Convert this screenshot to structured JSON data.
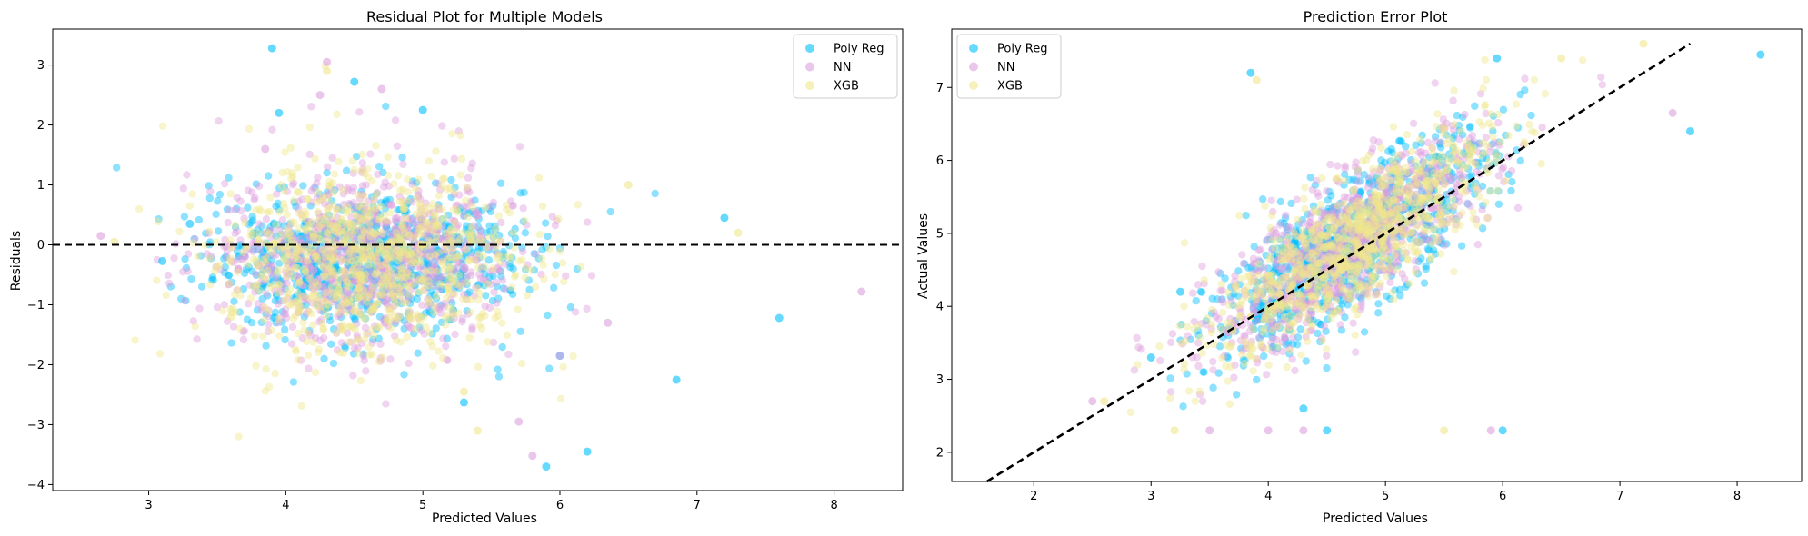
{
  "chart_data": [
    {
      "type": "scatter",
      "title": "Residual Plot for Multiple Models",
      "xlabel": "Predicted Values",
      "ylabel": "Residuals",
      "xlim": [
        2.3,
        8.5
      ],
      "ylim": [
        -4.1,
        3.6
      ],
      "xticks": [
        3,
        4,
        5,
        6,
        7,
        8
      ],
      "yticks": [
        -4,
        -3,
        -2,
        -1,
        0,
        1,
        2,
        3
      ],
      "grid": false,
      "legend_position": "top-right",
      "reference_line": {
        "type": "horizontal",
        "y": 0,
        "style": "dashed",
        "color": "#000000"
      },
      "series": [
        {
          "name": "Poly Reg",
          "color": "#00bfff",
          "alpha": 0.5,
          "points_description": "dense cloud x 3.2-7.6, residuals mostly -1.5 to 2",
          "x": [
            3.9,
            4.5,
            5.3,
            5.9,
            6.0,
            6.2,
            3.1,
            3.3,
            7.2,
            7.6,
            6.85,
            3.95,
            5.0
          ],
          "y": [
            3.28,
            2.72,
            -2.63,
            -3.7,
            -1.85,
            -3.45,
            -0.27,
            0.35,
            0.45,
            -1.22,
            -2.25,
            2.2,
            2.25
          ]
        },
        {
          "name": "NN",
          "color": "#dda0dd",
          "alpha": 0.5,
          "points_description": "dense cloud x 2.6-8.2, residuals mostly -1.5 to 2",
          "x": [
            2.65,
            4.3,
            4.25,
            5.8,
            5.7,
            8.2,
            4.7,
            3.85,
            6.35,
            6.0
          ],
          "y": [
            0.15,
            3.05,
            2.5,
            -3.52,
            -2.95,
            -0.78,
            2.6,
            1.6,
            -1.3,
            -1.85
          ]
        },
        {
          "name": "XGB",
          "color": "#f0e68c",
          "alpha": 0.5,
          "points_description": "dense cloud x 2.7-7.5, residuals mostly -1.2 to 1.5",
          "x": [
            2.75,
            4.3,
            5.4,
            5.3,
            3.6,
            6.5,
            7.3
          ],
          "y": [
            0.05,
            2.9,
            -3.1,
            -2.45,
            -1.2,
            1.0,
            0.2
          ]
        }
      ]
    },
    {
      "type": "scatter",
      "title": "Prediction Error Plot",
      "xlabel": "Predicted Values",
      "ylabel": "Actual Values",
      "xlim": [
        1.3,
        8.55
      ],
      "ylim": [
        1.6,
        7.8
      ],
      "xticks": [
        2,
        3,
        4,
        5,
        6,
        7,
        8
      ],
      "yticks": [
        2,
        3,
        4,
        5,
        6,
        7
      ],
      "grid": false,
      "legend_position": "top-left",
      "reference_line": {
        "type": "identity",
        "from": [
          1.6,
          1.6
        ],
        "to": [
          7.6,
          7.6
        ],
        "style": "dashed",
        "color": "#000000"
      },
      "series": [
        {
          "name": "Poly Reg",
          "color": "#00bfff",
          "alpha": 0.5,
          "x": [
            3.0,
            3.25,
            4.3,
            6.0,
            7.6,
            8.2,
            3.85,
            4.5,
            5.95
          ],
          "y": [
            3.3,
            4.2,
            2.6,
            2.3,
            6.4,
            7.45,
            7.2,
            2.3,
            7.4
          ]
        },
        {
          "name": "NN",
          "color": "#dda0dd",
          "alpha": 0.5,
          "x": [
            2.5,
            3.5,
            4.3,
            7.45,
            5.9,
            4.0
          ],
          "y": [
            2.7,
            2.3,
            2.3,
            6.65,
            2.3,
            2.3
          ]
        },
        {
          "name": "XGB",
          "color": "#f0e68c",
          "alpha": 0.5,
          "x": [
            2.6,
            3.2,
            5.5,
            7.2,
            6.5,
            3.9
          ],
          "y": [
            2.7,
            2.3,
            2.3,
            7.6,
            7.4,
            7.1
          ]
        }
      ]
    }
  ]
}
